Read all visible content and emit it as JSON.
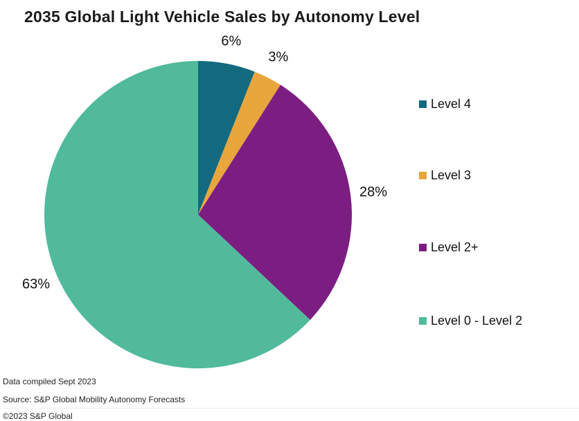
{
  "chart_data": {
    "type": "pie",
    "title": "2035 Global Light Vehicle Sales by Autonomy Level",
    "legend_position": "right",
    "start_angle_deg": 0,
    "direction": "clockwise",
    "slices": [
      {
        "label": "Level 4",
        "value": 6,
        "display": "6%",
        "color": "#136a7f"
      },
      {
        "label": "Level 3",
        "value": 3,
        "display": "3%",
        "color": "#e9a63c"
      },
      {
        "label": "Level 2+",
        "value": 28,
        "display": "28%",
        "color": "#7c1e81"
      },
      {
        "label": "Level 0 - Level 2",
        "value": 63,
        "display": "63%",
        "color": "#50ba9b"
      }
    ]
  },
  "footer": {
    "compiled": "Data compiled Sept 2023",
    "source": "Source: S&P Global Mobility Autonomy Forecasts",
    "copyright": "©2023 S&P Global"
  }
}
